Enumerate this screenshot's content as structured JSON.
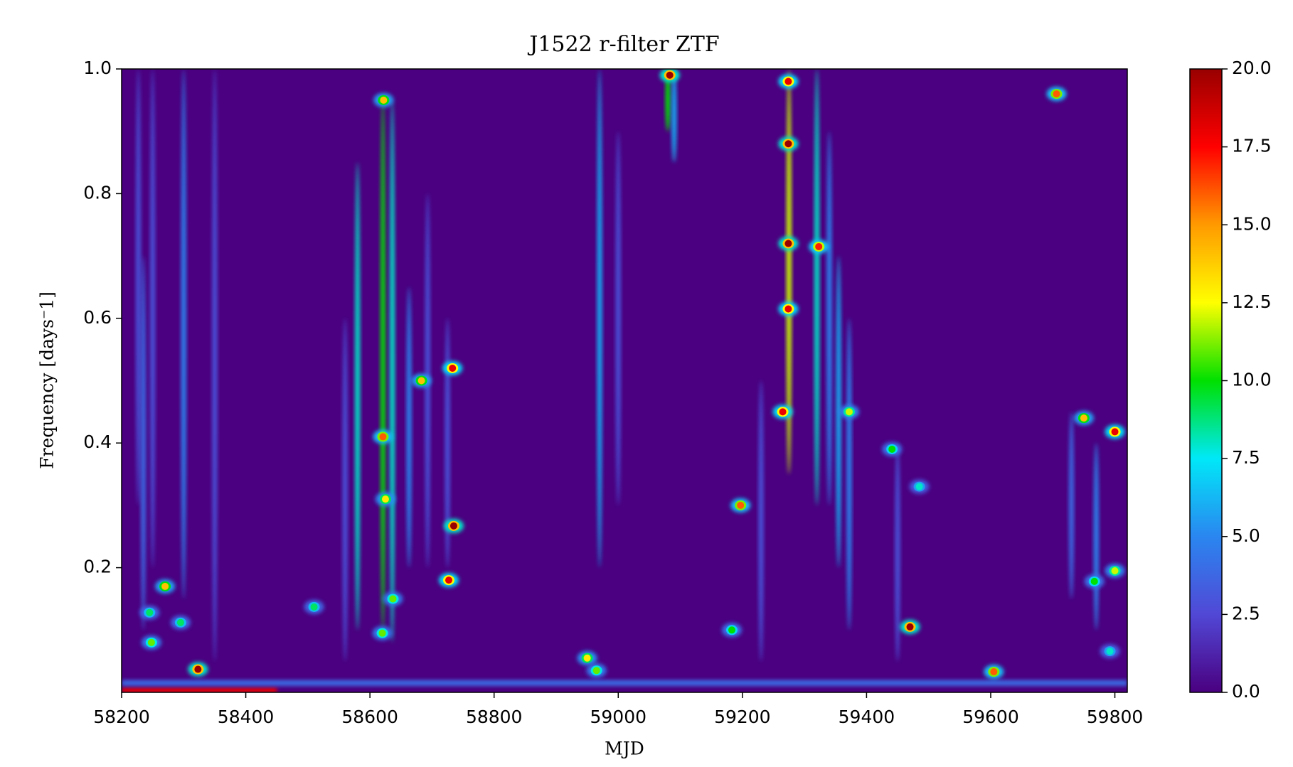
{
  "chart_data": {
    "type": "heatmap",
    "title": "J1522 r-filter ZTF",
    "xlabel": "MJD",
    "ylabel": "Frequency [days⁻1]",
    "xlim": [
      58200,
      59820
    ],
    "ylim": [
      0,
      1
    ],
    "xticks": [
      58200,
      58400,
      58600,
      58800,
      59000,
      59200,
      59400,
      59600,
      59800
    ],
    "yticks": [
      0.2,
      0.4,
      0.6,
      0.8,
      {
        "value": 1,
        "label": "1.0"
      }
    ],
    "clim": [
      0,
      20
    ],
    "cticks": [
      {
        "value": 0,
        "label": "0.0"
      },
      2.5,
      {
        "value": 5,
        "label": "5.0"
      },
      7.5,
      {
        "value": 10,
        "label": "10.0"
      },
      12.5,
      {
        "value": 15,
        "label": "15.0"
      },
      17.5,
      {
        "value": 20,
        "label": "20.0"
      }
    ],
    "colorscale": [
      "#4a0080",
      "#5148d6",
      "#2a86f0",
      "#00e8f8",
      "#00e000",
      "#ffff00",
      "#ff9a00",
      "#ff0000",
      "#990000"
    ],
    "bands": {
      "x0": [
        58200,
        58200
      ],
      "x1": [
        58450,
        59820
      ],
      "y": [
        0.003,
        0.015
      ],
      "values": [
        18,
        4
      ]
    },
    "streaks": {
      "x": [
        58227,
        58235,
        58250,
        58300,
        58350,
        58560,
        58580,
        58621,
        58636,
        58663,
        58693,
        58725,
        58970,
        59000,
        59080,
        59090,
        59230,
        59275,
        59320,
        59340,
        59355,
        59372,
        59450,
        59730,
        59770
      ],
      "y0": [
        0.3,
        0.1,
        0.2,
        0.15,
        0.05,
        0.05,
        0.1,
        0.1,
        0.08,
        0.2,
        0.2,
        0.2,
        0.2,
        0.3,
        0.9,
        0.85,
        0.05,
        0.35,
        0.3,
        0.3,
        0.2,
        0.1,
        0.05,
        0.15,
        0.1
      ],
      "y1": [
        1,
        0.7,
        1,
        1,
        1,
        0.6,
        0.85,
        0.95,
        0.95,
        0.65,
        0.8,
        0.6,
        1,
        0.9,
        1,
        1,
        0.5,
        1,
        1,
        0.9,
        0.7,
        0.6,
        0.4,
        0.45,
        0.4
      ],
      "values": [
        3,
        4,
        3,
        5,
        3,
        3,
        8,
        10,
        8,
        5,
        3,
        3,
        6,
        3,
        10,
        6,
        3,
        12,
        8,
        5,
        6,
        5,
        3,
        4,
        5
      ]
    },
    "spots": {
      "x": [
        58323,
        58270,
        58248,
        58245,
        58295,
        58510,
        58621,
        58625,
        58622,
        58637,
        58620,
        58683,
        58735,
        58733,
        58727,
        58950,
        58965,
        59083,
        59274,
        59274,
        59274,
        59274,
        59265,
        59323,
        59372,
        59197,
        59183,
        59441,
        59470,
        59485,
        59605,
        59706,
        59750,
        59800,
        59767,
        59800,
        59792
      ],
      "y": [
        0.037,
        0.17,
        0.08,
        0.128,
        0.112,
        0.137,
        0.41,
        0.31,
        0.95,
        0.15,
        0.095,
        0.5,
        0.267,
        0.52,
        0.18,
        0.055,
        0.035,
        0.99,
        0.98,
        0.88,
        0.72,
        0.615,
        0.45,
        0.715,
        0.45,
        0.3,
        0.1,
        0.39,
        0.105,
        0.33,
        0.033,
        0.96,
        0.44,
        0.418,
        0.178,
        0.195,
        0.066
      ],
      "values": [
        20,
        14,
        11,
        9,
        9,
        9,
        16,
        13,
        14,
        11,
        11,
        14,
        20,
        18,
        18,
        13,
        11,
        20,
        18,
        20,
        20,
        18,
        18,
        17,
        12,
        16,
        10,
        10,
        20,
        8,
        16,
        16,
        14,
        18,
        10,
        12,
        8
      ]
    }
  }
}
